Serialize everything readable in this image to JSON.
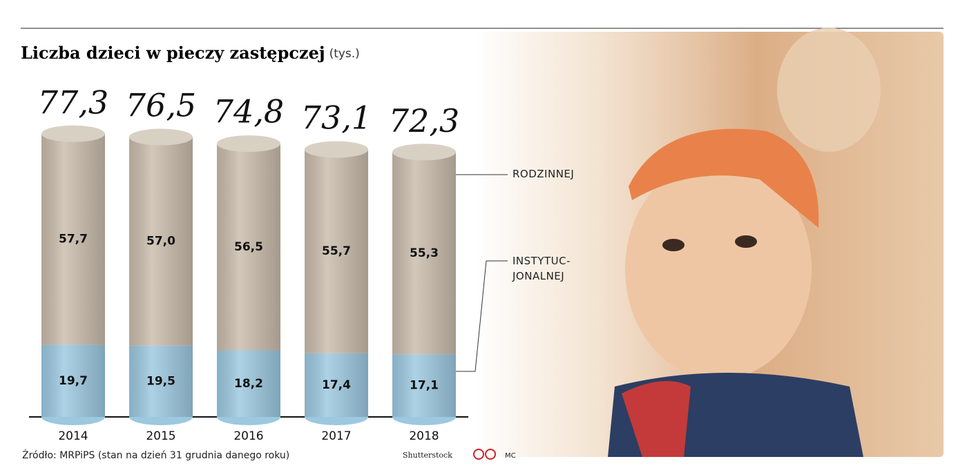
{
  "chart_data": {
    "type": "stacked-cylinder",
    "title": "Liczba dzieci w pieczy zastępczej",
    "unit": "(tys.)",
    "categories": [
      "2014",
      "2015",
      "2016",
      "2017",
      "2018"
    ],
    "series": [
      {
        "name": "INSTYTUC-JONALNEJ",
        "color": "#9cc8e0",
        "values": [
          19.7,
          19.5,
          18.2,
          17.4,
          17.1
        ],
        "value_labels": [
          "19,7",
          "19,5",
          "18,2",
          "17,4",
          "17,1"
        ]
      },
      {
        "name": "RODZINNEJ",
        "color": "#c9bcab",
        "values": [
          57.7,
          57.0,
          56.5,
          55.7,
          55.3
        ],
        "value_labels": [
          "57,7",
          "57,0",
          "56,5",
          "55,7",
          "55,3"
        ]
      }
    ],
    "totals": [
      77.3,
      76.5,
      74.8,
      73.1,
      72.3
    ],
    "total_labels": [
      "77,3",
      "76,5",
      "74,8",
      "73,1",
      "72,3"
    ],
    "ylim": [
      0,
      80
    ],
    "source": "Źródło: MRPiPS  (stan na dzień 31 grudnia danego roku)",
    "photo_credit": "Shutterstock",
    "author": "MC"
  }
}
